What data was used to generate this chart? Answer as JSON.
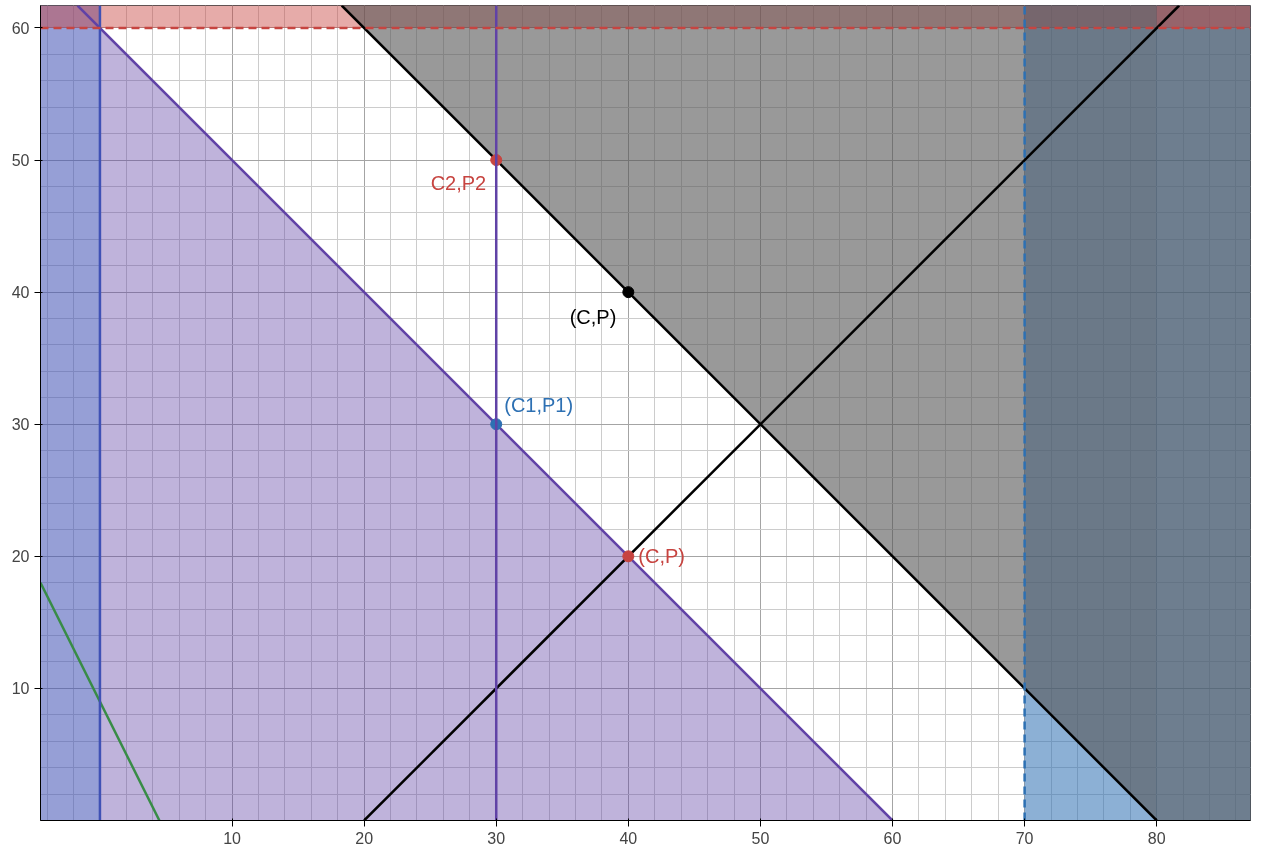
{
  "chart_data": {
    "type": "line",
    "xlim": [
      -4.5,
      87.1
    ],
    "ylim": [
      0,
      61.7
    ],
    "xticks": [
      10,
      20,
      30,
      40,
      50,
      60,
      70,
      80
    ],
    "yticks": [
      10,
      20,
      30,
      40,
      50,
      60
    ],
    "grid": true,
    "bands": [
      {
        "axis": "x",
        "from": -4.5,
        "to": 0,
        "color": "#3f51b5"
      },
      {
        "axis": "x",
        "from": 70,
        "to": 87.1,
        "color": "#2d70b3"
      },
      {
        "axis": "x",
        "from": 80,
        "to": 87.1,
        "color": "#555555"
      },
      {
        "axis": "y",
        "from": 60,
        "to": 61.7,
        "color": "#c74440"
      }
    ],
    "ref_lines": [
      {
        "axis": "x",
        "value": 0,
        "color": "#3f51b5",
        "line_style": "solid"
      },
      {
        "axis": "x",
        "value": 30,
        "color": "#6042a6",
        "line_style": "solid"
      },
      {
        "axis": "x",
        "value": 70,
        "color": "#2d70b3",
        "line_style": "dashed"
      },
      {
        "axis": "y",
        "value": 60,
        "color": "#c74440",
        "line_style": "dashed"
      }
    ],
    "series": [
      {
        "type": "area",
        "color": "#6042a6",
        "x": [
          0,
          60
        ],
        "values": [
          60,
          0
        ]
      },
      {
        "color": "#6042a6",
        "x": [
          -1.7,
          60
        ],
        "values": [
          61.7,
          0
        ]
      },
      {
        "color": "#000000",
        "x": [
          18.3,
          80
        ],
        "values": [
          61.7,
          0
        ],
        "lower": [
          61.7,
          0
        ],
        "upper": [
          61.7,
          61.7
        ]
      },
      {
        "color": "#000000",
        "x": [
          20,
          81.7
        ],
        "values": [
          0,
          61.7
        ]
      },
      {
        "color": "#388c46",
        "x": [
          -4.5,
          4.5
        ],
        "values": [
          18,
          0
        ]
      },
      {
        "type": "scatter",
        "name": "C2,P2",
        "color": "#c74440",
        "x": [
          30
        ],
        "values": [
          50
        ]
      },
      {
        "type": "scatter",
        "name": "(C,P)",
        "color": "#000000",
        "x": [
          40
        ],
        "values": [
          40
        ]
      },
      {
        "type": "scatter",
        "name": "(C1,P1)",
        "color": "#2d70b3",
        "x": [
          30
        ],
        "values": [
          30
        ]
      },
      {
        "type": "scatter",
        "name": "(C,P)",
        "color": "#c74440",
        "x": [
          40
        ],
        "values": [
          20
        ]
      }
    ]
  }
}
